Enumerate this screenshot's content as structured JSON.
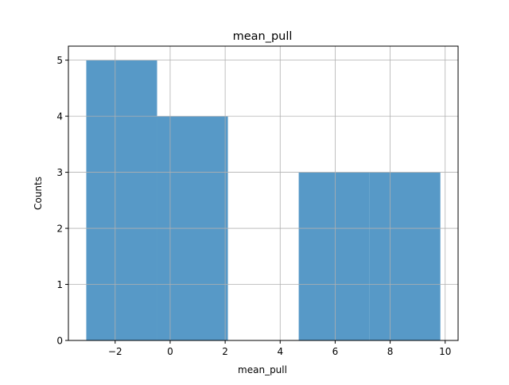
{
  "chart_data": {
    "type": "bar",
    "title": "mean_pull",
    "xlabel": "mean_pull",
    "ylabel": "Counts",
    "bins": [
      {
        "x0": -3.05,
        "x1": -0.475,
        "count": 5
      },
      {
        "x0": -0.475,
        "x1": 2.1,
        "count": 4
      },
      {
        "x0": 2.1,
        "x1": 4.675,
        "count": 0
      },
      {
        "x0": 4.675,
        "x1": 7.25,
        "count": 3
      },
      {
        "x0": 7.25,
        "x1": 9.825,
        "count": 3
      }
    ],
    "xlim": [
      -3.7,
      10.47
    ],
    "ylim": [
      0,
      5.25
    ],
    "xticks": [
      -2,
      0,
      2,
      4,
      6,
      8,
      10
    ],
    "xtick_labels": [
      "−2",
      "0",
      "2",
      "4",
      "6",
      "8",
      "10"
    ],
    "yticks": [
      0,
      1,
      2,
      3,
      4,
      5
    ],
    "ytick_labels": [
      "0",
      "1",
      "2",
      "3",
      "4",
      "5"
    ],
    "bar_color": "#5799c7",
    "grid": true,
    "grid_color": "#b0b0b0"
  }
}
